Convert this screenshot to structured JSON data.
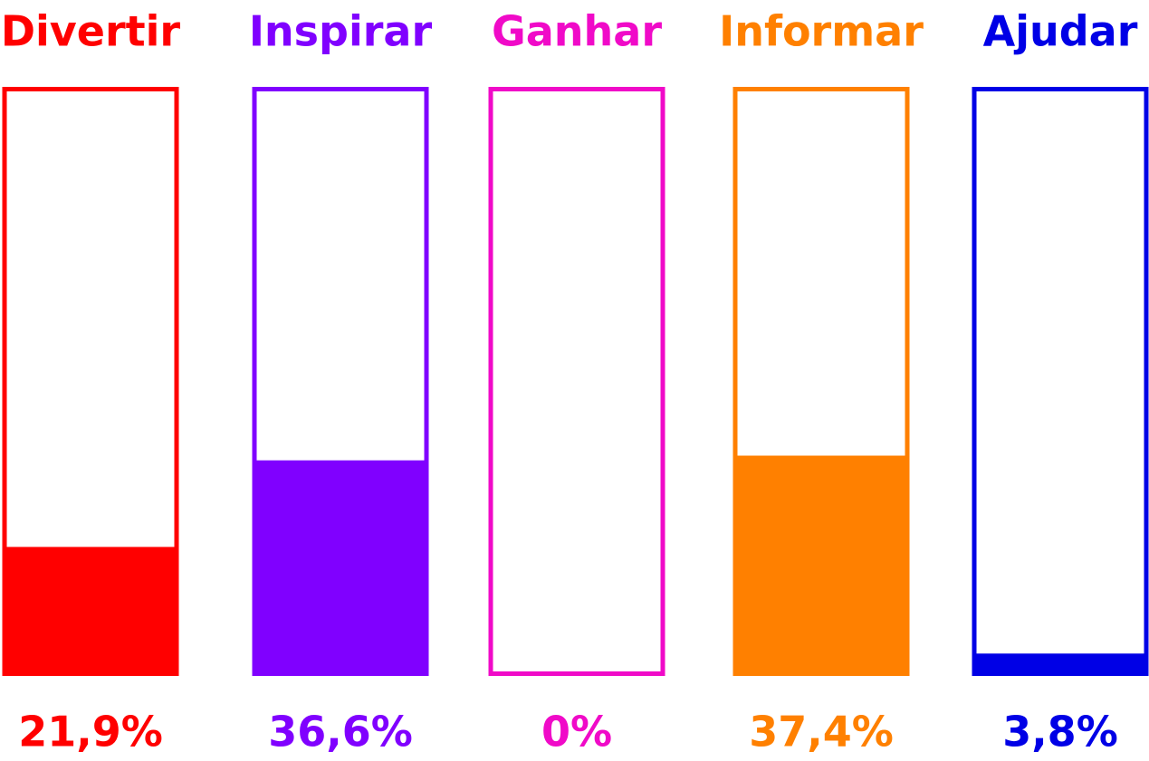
{
  "chart_data": {
    "type": "bar",
    "categories": [
      "Divertir",
      "Inspirar",
      "Ganhar",
      "Informar",
      "Ajudar"
    ],
    "values": [
      21.9,
      36.6,
      0,
      37.4,
      3.8
    ],
    "value_labels": [
      "21,9%",
      "36,6%",
      "0%",
      "37,4%",
      "3,8%"
    ],
    "colors": [
      "#ff0000",
      "#8000ff",
      "#f00ac8",
      "#ff8000",
      "#0000e6"
    ],
    "ylim": [
      0,
      100
    ]
  }
}
